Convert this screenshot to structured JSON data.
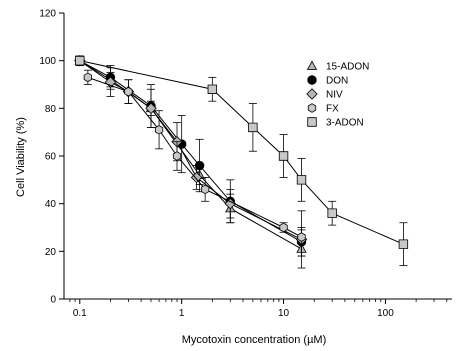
{
  "chart_data": {
    "type": "line",
    "title": "",
    "xlabel": "Mycotoxin concentration (µM)",
    "ylabel": "Cell Viability (%)",
    "x_scale": "log",
    "xlim": [
      0.07,
      450
    ],
    "ylim": [
      0,
      120
    ],
    "x_ticks": [
      0.1,
      1,
      10,
      100
    ],
    "x_tick_labels": [
      "0.1",
      "1",
      "10",
      "100"
    ],
    "y_ticks": [
      0,
      20,
      40,
      60,
      80,
      100,
      120
    ],
    "y_tick_labels": [
      "0",
      "20",
      "40",
      "60",
      "80",
      "100",
      "120"
    ],
    "grid": false,
    "legend_position": "top-right",
    "series": [
      {
        "name": "15-ADON",
        "marker": "triangle",
        "fill": "#b4b4b4",
        "x": [
          0.1,
          0.2,
          0.5,
          1.5,
          3,
          15
        ],
        "y": [
          100,
          92,
          80,
          52,
          38,
          21
        ],
        "err": [
          2,
          3,
          3,
          4,
          6,
          3
        ]
      },
      {
        "name": "DON",
        "marker": "circle",
        "fill": "#000000",
        "x": [
          0.1,
          0.2,
          0.5,
          1,
          1.5,
          3,
          15
        ],
        "y": [
          100,
          93,
          81,
          65,
          56,
          41,
          24
        ],
        "err": [
          2,
          5,
          9,
          12,
          11,
          9,
          6
        ]
      },
      {
        "name": "NIV",
        "marker": "diamond",
        "fill": "#b4b4b4",
        "x": [
          0.1,
          0.2,
          0.3,
          0.5,
          0.9,
          1.4,
          3,
          15
        ],
        "y": [
          100,
          91,
          87,
          80,
          66,
          51,
          40,
          25
        ],
        "err": [
          2,
          6,
          5,
          8,
          8,
          5,
          6,
          12
        ]
      },
      {
        "name": "FX",
        "marker": "hexagon",
        "fill": "#c8c8c8",
        "x": [
          0.12,
          0.3,
          0.6,
          0.9,
          1.7,
          10,
          15
        ],
        "y": [
          93,
          87,
          71,
          60,
          46,
          30,
          26
        ],
        "err": [
          3,
          5,
          8,
          6,
          5,
          2,
          3
        ]
      },
      {
        "name": "3-ADON",
        "marker": "square",
        "fill": "#c8c8c8",
        "x": [
          0.1,
          2,
          5,
          10,
          15,
          30,
          150
        ],
        "y": [
          100,
          88,
          72,
          60,
          50,
          36,
          23
        ],
        "err": [
          2,
          5,
          10,
          9,
          9,
          5,
          9
        ]
      }
    ]
  }
}
